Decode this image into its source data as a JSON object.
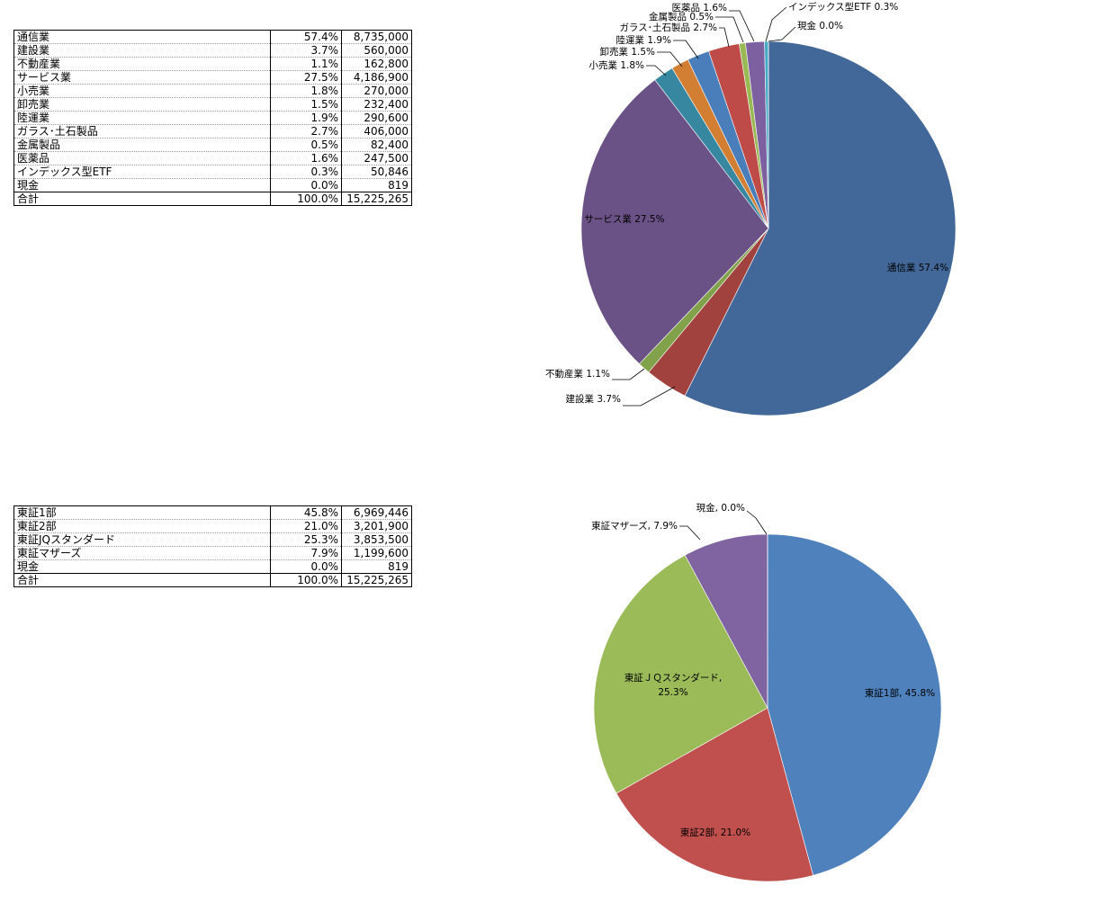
{
  "tables": [
    {
      "rows": [
        {
          "label": "通信業",
          "pct": "57.4%",
          "amount": "8,735,000"
        },
        {
          "label": "建設業",
          "pct": "3.7%",
          "amount": "560,000"
        },
        {
          "label": "不動産業",
          "pct": "1.1%",
          "amount": "162,800"
        },
        {
          "label": "サービス業",
          "pct": "27.5%",
          "amount": "4,186,900"
        },
        {
          "label": "小売業",
          "pct": "1.8%",
          "amount": "270,000"
        },
        {
          "label": "卸売業",
          "pct": "1.5%",
          "amount": "232,400"
        },
        {
          "label": "陸運業",
          "pct": "1.9%",
          "amount": "290,600"
        },
        {
          "label": "ガラス･土石製品",
          "pct": "2.7%",
          "amount": "406,000"
        },
        {
          "label": "金属製品",
          "pct": "0.5%",
          "amount": "82,400"
        },
        {
          "label": "医薬品",
          "pct": "1.6%",
          "amount": "247,500"
        },
        {
          "label": "インデックス型ETF",
          "pct": "0.3%",
          "amount": "50,846"
        },
        {
          "label": "現金",
          "pct": "0.0%",
          "amount": "819"
        }
      ],
      "total": {
        "label": "合計",
        "pct": "100.0%",
        "amount": "15,225,265"
      }
    },
    {
      "rows": [
        {
          "label": "東証1部",
          "pct": "45.8%",
          "amount": "6,969,446"
        },
        {
          "label": "東証2部",
          "pct": "21.0%",
          "amount": "3,201,900"
        },
        {
          "label": "東証JQスタンダード",
          "pct": "25.3%",
          "amount": "3,853,500"
        },
        {
          "label": "東証マザーズ",
          "pct": "7.9%",
          "amount": "1,199,600"
        },
        {
          "label": "現金",
          "pct": "0.0%",
          "amount": "819"
        }
      ],
      "total": {
        "label": "合計",
        "pct": "100.0%",
        "amount": "15,225,265"
      }
    }
  ],
  "chart_data": [
    {
      "type": "pie",
      "title": "",
      "legend": "none",
      "slices": [
        {
          "label": "通信業 57.4%",
          "value": 8735000,
          "color": "#416898"
        },
        {
          "label": "建設業 3.7%",
          "value": 560000,
          "color": "#a2423f"
        },
        {
          "label": "不動産業 1.1%",
          "value": 162800,
          "color": "#81a24a"
        },
        {
          "label": "サービス業 27.5%",
          "value": 4186900,
          "color": "#6b5286"
        },
        {
          "label": "小売業 1.8%",
          "value": 270000,
          "color": "#3887a1"
        },
        {
          "label": "卸売業 1.5%",
          "value": 232400,
          "color": "#d27f34"
        },
        {
          "label": "陸運業 1.9%",
          "value": 290600,
          "color": "#4a7ebb"
        },
        {
          "label": "ガラス･土石製品 2.7%",
          "value": 406000,
          "color": "#be4b48"
        },
        {
          "label": "金属製品 0.5%",
          "value": 82400,
          "color": "#98b954"
        },
        {
          "label": "医薬品 1.6%",
          "value": 247500,
          "color": "#7d60a0"
        },
        {
          "label": "インデックス型ETF 0.3%",
          "value": 50846,
          "color": "#46aac5"
        },
        {
          "label": "現金 0.0%",
          "value": 819,
          "color": "#f59d56"
        }
      ]
    },
    {
      "type": "pie",
      "title": "",
      "legend": "none",
      "slices": [
        {
          "label": "東証1部, 45.8%",
          "value": 6969446,
          "color": "#4f81bd"
        },
        {
          "label": "東証2部, 21.0%",
          "value": 3201900,
          "color": "#c0504d"
        },
        {
          "label": [
            "東証ＪＱスタンダード,",
            "25.3%"
          ],
          "value": 3853500,
          "color": "#9bbb59"
        },
        {
          "label": "東証マザーズ, 7.9%",
          "value": 1199600,
          "color": "#8064a2"
        },
        {
          "label": "現金, 0.0%",
          "value": 819,
          "color": "#4bacc6"
        }
      ]
    }
  ]
}
